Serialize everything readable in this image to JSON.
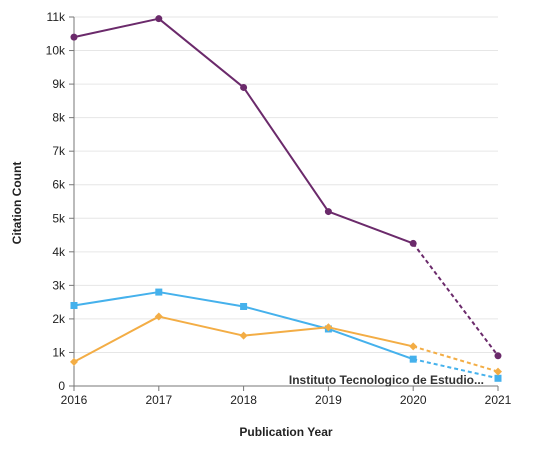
{
  "chart_data": {
    "type": "line",
    "xlabel": "Publication Year",
    "ylabel": "Citation Count",
    "x": [
      2016,
      2017,
      2018,
      2019,
      2020,
      2021
    ],
    "x_tick_labels": [
      "2016",
      "2017",
      "2018",
      "2019",
      "2020",
      "2021"
    ],
    "ylim": [
      0,
      11000
    ],
    "y_ticks": [
      0,
      1000,
      2000,
      3000,
      4000,
      5000,
      6000,
      7000,
      8000,
      9000,
      10000,
      11000
    ],
    "y_tick_labels": [
      "0",
      "1k",
      "2k",
      "3k",
      "4k",
      "5k",
      "6k",
      "7k",
      "8k",
      "9k",
      "10k",
      "11k"
    ],
    "grid": true,
    "legend": "none",
    "annotations": [
      {
        "text": "Instituto Tecnologico de Estudio..."
      }
    ],
    "series": [
      {
        "color": "#6b2a6b",
        "marker": "circle",
        "values": [
          10400,
          10950,
          8900,
          5200,
          4250,
          900
        ],
        "dashed_from_index": 4
      },
      {
        "color": "#45b1ec",
        "marker": "square",
        "values": [
          2400,
          2800,
          2370,
          1700,
          800,
          230
        ],
        "dashed_from_index": 4
      },
      {
        "color": "#f3ad45",
        "marker": "diamond",
        "values": [
          720,
          2070,
          1500,
          1750,
          1180,
          430
        ],
        "dashed_from_index": 4
      }
    ]
  }
}
